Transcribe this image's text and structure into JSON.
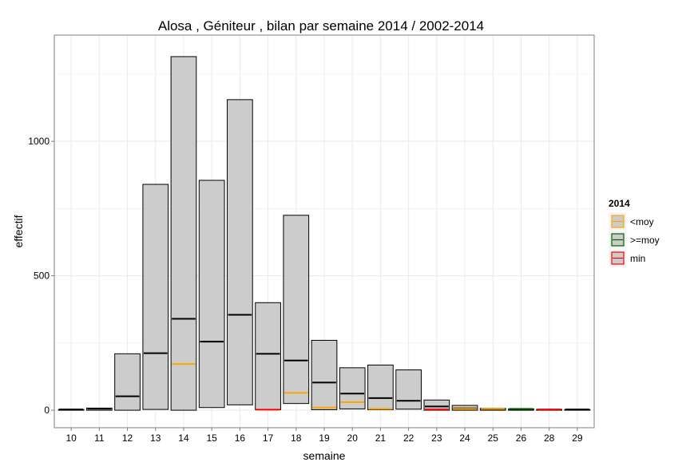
{
  "chart_data": {
    "type": "bar",
    "title": "Alosa , Géniteur , bilan par semaine 2014 / 2002-2014",
    "xlabel": "semaine",
    "ylabel": "effectif",
    "categories": [
      "10",
      "11",
      "12",
      "13",
      "14",
      "15",
      "16",
      "17",
      "18",
      "19",
      "20",
      "21",
      "22",
      "23",
      "24",
      "25",
      "26",
      "28",
      "29"
    ],
    "series": [
      {
        "values": [
          0,
          0,
          0,
          3,
          0,
          10,
          20,
          2,
          25,
          2,
          5,
          2,
          4,
          0,
          0,
          0,
          0,
          0,
          0
        ]
      },
      {
        "values": [
          3,
          8,
          210,
          840,
          1315,
          855,
          1155,
          400,
          725,
          260,
          158,
          168,
          150,
          38,
          18,
          7,
          5,
          3,
          3
        ]
      },
      {
        "values": [
          3,
          6,
          52,
          212,
          340,
          255,
          355,
          210,
          185,
          103,
          62,
          45,
          35,
          14,
          7,
          4,
          3,
          2,
          3
        ]
      },
      {
        "values": [
          null,
          null,
          null,
          null,
          172,
          null,
          null,
          2,
          65,
          10,
          30,
          5,
          null,
          3,
          5,
          5,
          5,
          3,
          null
        ]
      }
    ],
    "point_legend_keys": [
      null,
      null,
      null,
      null,
      "<moy",
      null,
      null,
      "min",
      "<moy",
      "<moy",
      "<moy",
      "<moy",
      null,
      "min",
      "<moy",
      "<moy",
      ">=moy",
      "min",
      null
    ],
    "ylim": [
      -65,
      1395
    ],
    "yticks": [
      0,
      500,
      1000
    ],
    "grid": true,
    "legend": {
      "title": "2014",
      "position": "right",
      "items": [
        {
          "label": "<moy",
          "color": "#FFA500"
        },
        {
          "label": ">=moy",
          "color": "#006400"
        },
        {
          "label": "min",
          "color": "#FF0000"
        }
      ]
    },
    "colors": {
      "bar_fill": "#CCCCCC",
      "bar_stroke": "#000000",
      "mean_line": "#000000",
      "grid": "#EBEBEB",
      "panel_border": "#7F7F7F"
    }
  }
}
